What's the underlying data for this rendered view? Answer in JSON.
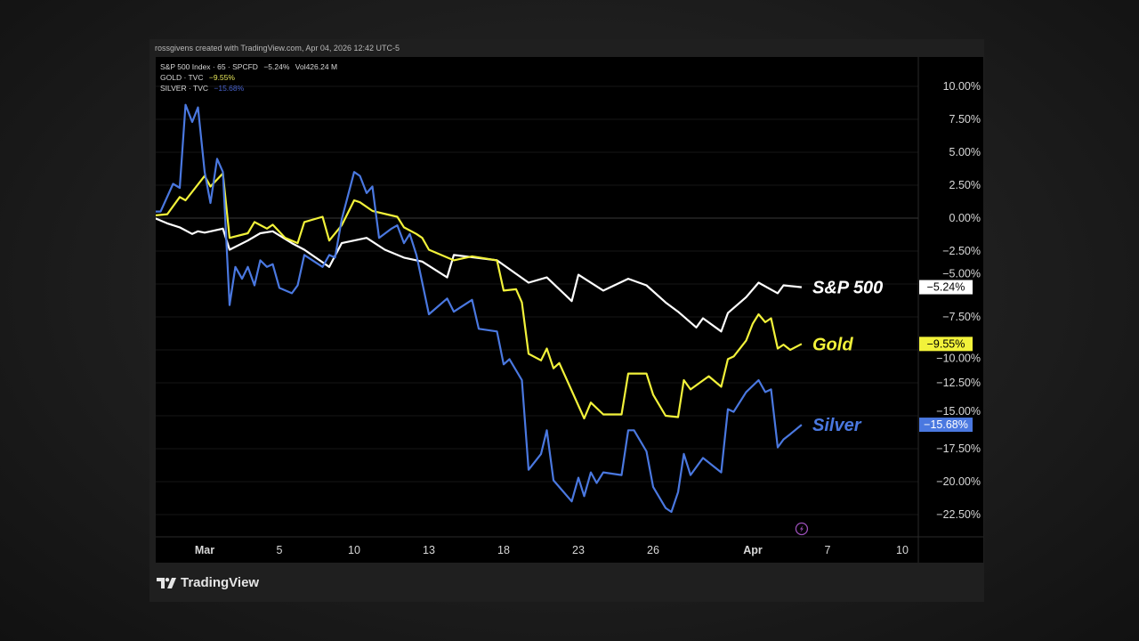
{
  "credit": "rossgivens created with TradingView.com, Apr 04, 2026 12:42 UTC-5",
  "legend": [
    {
      "label": "S&P 500 Index · 65 · SPCFD",
      "change": "−5.24%",
      "extra": "Vol426.24 M",
      "color": "#ffffff"
    },
    {
      "label": "GOLD · TVC",
      "change": "−9.55%",
      "extra": "",
      "color": "#f2f23a"
    },
    {
      "label": "SILVER · TVC",
      "change": "−15.68%",
      "extra": "",
      "color": "#4a78e0"
    }
  ],
  "logo_text": "TradingView",
  "chart_data": {
    "type": "line",
    "title": "",
    "xlabel": "",
    "ylabel": "",
    "ylim": [
      -24.5,
      12.5
    ],
    "grid": true,
    "y_scale": "percent change",
    "x_ticks": [
      "Mar",
      "5",
      "10",
      "13",
      "18",
      "23",
      "26",
      "Apr",
      "7",
      "10"
    ],
    "y_ticks": [
      "10.00%",
      "7.50%",
      "5.00%",
      "2.50%",
      "0.00%",
      "−2.50%",
      "−5.00%",
      "−7.50%",
      "−10.00%",
      "−12.50%",
      "−15.00%",
      "−17.50%",
      "−20.00%",
      "−22.50%"
    ],
    "series": [
      {
        "name": "S&P 500",
        "color": "#ffffff",
        "last_label": "−5.24%",
        "points": [
          [
            "2026-02-26 09:30",
            0.0
          ],
          [
            "2026-02-26 12:45",
            -0.4
          ],
          [
            "2026-02-27 09:30",
            -0.7
          ],
          [
            "2026-02-27 12:45",
            -1.2
          ],
          [
            "2026-02-27 14:15",
            -1.0
          ],
          [
            "2026-03-02 09:30",
            -1.1
          ],
          [
            "2026-03-02 14:15",
            -0.8
          ],
          [
            "2026-03-03 09:30",
            -2.4
          ],
          [
            "2026-03-03 14:15",
            -1.7
          ],
          [
            "2026-03-04 11:00",
            -1.15
          ],
          [
            "2026-03-04 14:15",
            -1.0
          ],
          [
            "2026-03-05 12:45",
            -1.9
          ],
          [
            "2026-03-06 09:30",
            -2.4
          ],
          [
            "2026-03-09 09:30",
            -3.7
          ],
          [
            "2026-03-09 12:45",
            -1.9
          ],
          [
            "2026-03-10 12:45",
            -1.5
          ],
          [
            "2026-03-11 11:00",
            -2.4
          ],
          [
            "2026-03-12 09:30",
            -3.0
          ],
          [
            "2026-03-12 14:15",
            -3.3
          ],
          [
            "2026-03-13 14:15",
            -4.5
          ],
          [
            "2026-03-16 09:30",
            -2.8
          ],
          [
            "2026-03-17 14:15",
            -3.2
          ],
          [
            "2026-03-19 09:30",
            -4.9
          ],
          [
            "2026-03-19 14:15",
            -4.5
          ],
          [
            "2026-03-20 14:15",
            -6.3
          ],
          [
            "2026-03-23 09:30",
            -4.3
          ],
          [
            "2026-03-24 09:30",
            -5.5
          ],
          [
            "2026-03-25 09:30",
            -4.6
          ],
          [
            "2026-03-25 14:15",
            -5.1
          ],
          [
            "2026-03-26 12:45",
            -6.4
          ],
          [
            "2026-03-27 09:30",
            -7.1
          ],
          [
            "2026-03-27 14:15",
            -8.3
          ],
          [
            "2026-03-30 09:30",
            -7.6
          ],
          [
            "2026-03-30 14:15",
            -8.6
          ],
          [
            "2026-03-31 09:30",
            -7.2
          ],
          [
            "2026-03-31 14:15",
            -6.0
          ],
          [
            "2026-04-01 11:00",
            -4.9
          ],
          [
            "2026-04-02 09:30",
            -5.7
          ],
          [
            "2026-04-02 11:00",
            -5.1
          ],
          [
            "2026-04-02 15:45",
            -5.24
          ]
        ]
      },
      {
        "name": "Gold",
        "color": "#f2f23a",
        "last_label": "−9.55%",
        "points": [
          [
            "2026-02-26 09:30",
            0.2
          ],
          [
            "2026-02-26 12:45",
            0.3
          ],
          [
            "2026-02-27 09:30",
            1.6
          ],
          [
            "2026-02-27 11:00",
            1.35
          ],
          [
            "2026-03-02 09:30",
            3.2
          ],
          [
            "2026-03-02 11:00",
            2.4
          ],
          [
            "2026-03-02 14:15",
            3.4
          ],
          [
            "2026-03-03 09:30",
            -1.5
          ],
          [
            "2026-03-03 14:15",
            -1.15
          ],
          [
            "2026-03-04 09:30",
            -0.3
          ],
          [
            "2026-03-04 12:45",
            -0.8
          ],
          [
            "2026-03-04 14:15",
            -0.5
          ],
          [
            "2026-03-05 11:00",
            -1.5
          ],
          [
            "2026-03-05 14:15",
            -1.9
          ],
          [
            "2026-03-06 09:30",
            -0.3
          ],
          [
            "2026-03-06 14:15",
            0.1
          ],
          [
            "2026-03-09 09:30",
            -1.7
          ],
          [
            "2026-03-09 12:45",
            -0.55
          ],
          [
            "2026-03-10 09:30",
            1.35
          ],
          [
            "2026-03-10 11:00",
            1.2
          ],
          [
            "2026-03-10 14:15",
            0.55
          ],
          [
            "2026-03-11 12:45",
            0.2
          ],
          [
            "2026-03-11 14:15",
            0.1
          ],
          [
            "2026-03-12 09:30",
            -0.7
          ],
          [
            "2026-03-12 12:45",
            -1.2
          ],
          [
            "2026-03-12 14:15",
            -1.5
          ],
          [
            "2026-03-13 09:30",
            -2.4
          ],
          [
            "2026-03-16 09:30",
            -3.2
          ],
          [
            "2026-03-16 14:15",
            -2.9
          ],
          [
            "2026-03-17 14:15",
            -3.2
          ],
          [
            "2026-03-18 09:30",
            -5.5
          ],
          [
            "2026-03-18 12:45",
            -5.4
          ],
          [
            "2026-03-18 14:15",
            -6.4
          ],
          [
            "2026-03-19 09:30",
            -10.3
          ],
          [
            "2026-03-19 12:45",
            -10.8
          ],
          [
            "2026-03-19 14:15",
            -9.9
          ],
          [
            "2026-03-20 09:30",
            -11.4
          ],
          [
            "2026-03-20 11:00",
            -11.0
          ],
          [
            "2026-03-23 11:00",
            -15.2
          ],
          [
            "2026-03-23 12:45",
            -14.0
          ],
          [
            "2026-03-24 09:30",
            -14.9
          ],
          [
            "2026-03-24 14:15",
            -14.9
          ],
          [
            "2026-03-25 09:30",
            -11.8
          ],
          [
            "2026-03-25 14:15",
            -11.8
          ],
          [
            "2026-03-26 09:30",
            -13.4
          ],
          [
            "2026-03-26 12:45",
            -15.0
          ],
          [
            "2026-03-27 09:30",
            -15.1
          ],
          [
            "2026-03-27 11:00",
            -12.3
          ],
          [
            "2026-03-27 12:45",
            -13.0
          ],
          [
            "2026-03-30 11:00",
            -12.0
          ],
          [
            "2026-03-30 14:15",
            -12.8
          ],
          [
            "2026-03-31 09:30",
            -10.7
          ],
          [
            "2026-03-31 11:00",
            -10.5
          ],
          [
            "2026-03-31 14:15",
            -9.3
          ],
          [
            "2026-04-01 09:30",
            -8.0
          ],
          [
            "2026-04-01 11:00",
            -7.3
          ],
          [
            "2026-04-01 12:45",
            -7.9
          ],
          [
            "2026-04-01 14:15",
            -7.6
          ],
          [
            "2026-04-02 09:30",
            -9.9
          ],
          [
            "2026-04-02 11:00",
            -9.6
          ],
          [
            "2026-04-02 12:45",
            -10.0
          ],
          [
            "2026-04-02 15:45",
            -9.55
          ]
        ]
      },
      {
        "name": "Silver",
        "color": "#4a78e0",
        "last_label": "−15.68%",
        "points": [
          [
            "2026-02-26 09:30",
            0.5
          ],
          [
            "2026-02-26 11:00",
            0.5
          ],
          [
            "2026-02-26 14:15",
            2.6
          ],
          [
            "2026-02-27 09:30",
            2.3
          ],
          [
            "2026-02-27 11:00",
            8.6
          ],
          [
            "2026-02-27 12:45",
            7.3
          ],
          [
            "2026-02-27 14:15",
            8.4
          ],
          [
            "2026-03-02 09:30",
            3.5
          ],
          [
            "2026-03-02 11:00",
            1.15
          ],
          [
            "2026-03-02 12:45",
            4.5
          ],
          [
            "2026-03-02 14:15",
            3.5
          ],
          [
            "2026-03-03 09:30",
            -6.6
          ],
          [
            "2026-03-03 11:00",
            -3.7
          ],
          [
            "2026-03-03 12:45",
            -4.6
          ],
          [
            "2026-03-03 14:15",
            -3.7
          ],
          [
            "2026-03-04 09:30",
            -5.1
          ],
          [
            "2026-03-04 11:00",
            -3.2
          ],
          [
            "2026-03-04 12:45",
            -3.7
          ],
          [
            "2026-03-04 14:15",
            -3.5
          ],
          [
            "2026-03-05 09:30",
            -5.3
          ],
          [
            "2026-03-05 12:45",
            -5.7
          ],
          [
            "2026-03-05 14:15",
            -5.1
          ],
          [
            "2026-03-06 09:30",
            -2.8
          ],
          [
            "2026-03-06 14:15",
            -3.7
          ],
          [
            "2026-03-09 09:30",
            -2.8
          ],
          [
            "2026-03-09 11:00",
            -3.0
          ],
          [
            "2026-03-09 12:45",
            -0.1
          ],
          [
            "2026-03-10 09:30",
            3.5
          ],
          [
            "2026-03-10 11:00",
            3.2
          ],
          [
            "2026-03-10 12:45",
            1.9
          ],
          [
            "2026-03-10 14:15",
            2.4
          ],
          [
            "2026-03-11 09:30",
            -1.5
          ],
          [
            "2026-03-11 12:45",
            -0.8
          ],
          [
            "2026-03-11 14:15",
            -0.55
          ],
          [
            "2026-03-12 09:30",
            -1.9
          ],
          [
            "2026-03-12 11:00",
            -1.2
          ],
          [
            "2026-03-12 12:45",
            -2.8
          ],
          [
            "2026-03-13 09:30",
            -7.3
          ],
          [
            "2026-03-13 14:15",
            -6.1
          ],
          [
            "2026-03-16 09:30",
            -7.1
          ],
          [
            "2026-03-16 14:15",
            -6.2
          ],
          [
            "2026-03-17 09:30",
            -8.4
          ],
          [
            "2026-03-17 14:15",
            -8.6
          ],
          [
            "2026-03-18 09:30",
            -11.1
          ],
          [
            "2026-03-18 11:00",
            -10.7
          ],
          [
            "2026-03-18 14:15",
            -12.3
          ],
          [
            "2026-03-19 09:30",
            -19.1
          ],
          [
            "2026-03-19 12:45",
            -17.9
          ],
          [
            "2026-03-19 14:15",
            -16.1
          ],
          [
            "2026-03-20 09:30",
            -19.9
          ],
          [
            "2026-03-20 14:15",
            -21.5
          ],
          [
            "2026-03-23 09:30",
            -19.7
          ],
          [
            "2026-03-23 11:00",
            -21.1
          ],
          [
            "2026-03-23 12:45",
            -19.3
          ],
          [
            "2026-03-23 14:15",
            -20.1
          ],
          [
            "2026-03-24 09:30",
            -19.3
          ],
          [
            "2026-03-24 14:15",
            -19.5
          ],
          [
            "2026-03-25 09:30",
            -16.1
          ],
          [
            "2026-03-25 11:00",
            -16.1
          ],
          [
            "2026-03-25 14:15",
            -17.7
          ],
          [
            "2026-03-26 09:30",
            -20.4
          ],
          [
            "2026-03-26 12:45",
            -22.0
          ],
          [
            "2026-03-26 14:15",
            -22.3
          ],
          [
            "2026-03-27 09:30",
            -20.8
          ],
          [
            "2026-03-27 11:00",
            -17.9
          ],
          [
            "2026-03-27 12:45",
            -19.5
          ],
          [
            "2026-03-30 09:30",
            -18.2
          ],
          [
            "2026-03-30 14:15",
            -19.3
          ],
          [
            "2026-03-31 09:30",
            -14.5
          ],
          [
            "2026-03-31 11:00",
            -14.7
          ],
          [
            "2026-03-31 14:15",
            -13.2
          ],
          [
            "2026-04-01 11:00",
            -12.3
          ],
          [
            "2026-04-01 12:45",
            -13.2
          ],
          [
            "2026-04-01 14:15",
            -13.0
          ],
          [
            "2026-04-02 09:30",
            -17.4
          ],
          [
            "2026-04-02 11:00",
            -16.8
          ],
          [
            "2026-04-02 12:45",
            -16.4
          ],
          [
            "2026-04-02 15:45",
            -15.68
          ]
        ]
      }
    ]
  }
}
